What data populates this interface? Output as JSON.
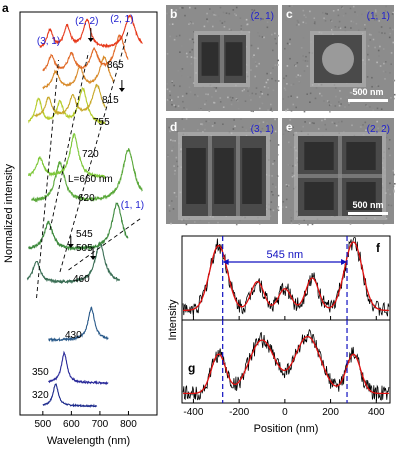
{
  "panel_letters": {
    "a": "a",
    "b": "b",
    "c": "c",
    "d": "d",
    "e": "e",
    "f": "f",
    "g": "g"
  },
  "colors": {
    "blue_label": "#1f1fd0",
    "fit_red": "#e01010",
    "dashed": "#1010c0",
    "image_bg": "#8c8c8c"
  },
  "chart_data": [
    {
      "panel": "a",
      "type": "line",
      "xlabel": "Wavelength (nm)",
      "ylabel": "Normalized intensity",
      "xlim": [
        420,
        900
      ],
      "xticks": [
        500,
        600,
        700,
        800
      ],
      "size_label_prefix": "L=",
      "size_label_unit": " nm",
      "series": [
        {
          "name": "320",
          "L": 320,
          "color": "#1c2a8c",
          "x0": 500,
          "x1": 690,
          "peaks": [
            {
              "x": 545,
              "h": 1.0,
              "w": 11
            }
          ]
        },
        {
          "name": "350",
          "L": 350,
          "color": "#2a2a9a",
          "x0": 520,
          "x1": 730,
          "peaks": [
            {
              "x": 575,
              "h": 1.0,
              "w": 12
            }
          ]
        },
        {
          "name": "430",
          "L": 430,
          "color": "#2a5a8a",
          "x0": 520,
          "x1": 730,
          "peaks": [
            {
              "x": 670,
              "h": 1.0,
              "w": 14
            }
          ]
        },
        {
          "name": "460",
          "L": 460,
          "color": "#3a6e55",
          "x0": 445,
          "x1": 770,
          "peaks": [
            {
              "x": 478,
              "h": 0.55,
              "w": 15
            },
            {
              "x": 700,
              "h": 1.0,
              "w": 20
            }
          ]
        },
        {
          "name": "505",
          "L": 505,
          "color": "#3e8a3e",
          "x0": 450,
          "x1": 800,
          "peaks": [
            {
              "x": 520,
              "h": 0.6,
              "w": 18
            },
            {
              "x": 760,
              "h": 1.0,
              "w": 22
            }
          ]
        },
        {
          "name": "545",
          "L": 545,
          "color": "#5aa83a",
          "x0": 460,
          "x1": 850,
          "peaks": [
            {
              "x": 560,
              "h": 0.75,
              "w": 20
            },
            {
              "x": 800,
              "h": 1.0,
              "w": 25
            }
          ]
        },
        {
          "name": "620",
          "L": 620,
          "color": "#7ec83a",
          "x0": 450,
          "x1": 720,
          "peaks": [
            {
              "x": 490,
              "h": 0.45,
              "w": 15
            },
            {
              "x": 610,
              "h": 1.0,
              "w": 18
            }
          ]
        },
        {
          "name": "660",
          "L": 660,
          "color": "#b6cc2a",
          "x0": 450,
          "x1": 720,
          "peaks": [
            {
              "x": 485,
              "h": 0.7,
              "w": 14
            },
            {
              "x": 560,
              "h": 0.6,
              "w": 14
            },
            {
              "x": 640,
              "h": 1.0,
              "w": 18
            }
          ]
        },
        {
          "name": "720",
          "L": 720,
          "color": "#c8a82a",
          "x0": 470,
          "x1": 720,
          "peaks": [
            {
              "x": 520,
              "h": 0.6,
              "w": 14
            },
            {
              "x": 605,
              "h": 0.65,
              "w": 15
            },
            {
              "x": 690,
              "h": 1.0,
              "w": 20
            }
          ]
        },
        {
          "name": "755",
          "L": 755,
          "color": "#d88a2a",
          "x0": 500,
          "x1": 750,
          "peaks": [
            {
              "x": 545,
              "h": 0.55,
              "w": 15
            },
            {
              "x": 630,
              "h": 0.65,
              "w": 15
            },
            {
              "x": 715,
              "h": 1.0,
              "w": 20
            }
          ]
        },
        {
          "name": "815",
          "L": 815,
          "color": "#e06a28",
          "x0": 500,
          "x1": 800,
          "peaks": [
            {
              "x": 530,
              "h": 0.45,
              "w": 14
            },
            {
              "x": 600,
              "h": 0.5,
              "w": 15
            },
            {
              "x": 680,
              "h": 0.6,
              "w": 16
            },
            {
              "x": 770,
              "h": 1.0,
              "w": 22
            }
          ]
        },
        {
          "name": "865",
          "L": 865,
          "color": "#e63a1c",
          "x0": 490,
          "x1": 850,
          "peaks": [
            {
              "x": 525,
              "h": 0.55,
              "w": 13
            },
            {
              "x": 585,
              "h": 0.65,
              "w": 14
            },
            {
              "x": 655,
              "h": 0.85,
              "w": 16
            },
            {
              "x": 805,
              "h": 1.0,
              "w": 22
            }
          ]
        }
      ],
      "mode_labels": [
        {
          "text": "(3, 1)",
          "x": 555
        },
        {
          "text": "(2, 2)",
          "x": 668
        },
        {
          "text": "(2, 1)",
          "x": 812
        },
        {
          "text": "(1, 1)",
          "x": 842
        }
      ]
    },
    {
      "panel": "f",
      "type": "line",
      "xlabel": "Position (nm)",
      "ylabel": "Intensity",
      "xlim": [
        -450,
        460
      ],
      "xticks": [
        -400,
        -200,
        0,
        200,
        400
      ],
      "annotation": "545 nm",
      "dashed_lines_x": [
        -272,
        272
      ],
      "peaks": [
        {
          "x": -290,
          "h": 0.9,
          "w": 55
        },
        {
          "x": -120,
          "h": 0.4,
          "w": 40
        },
        {
          "x": 0,
          "h": 0.3,
          "w": 40
        },
        {
          "x": 120,
          "h": 0.45,
          "w": 40
        },
        {
          "x": 300,
          "h": 0.95,
          "w": 55
        }
      ],
      "baseline": 0.05
    },
    {
      "panel": "g",
      "type": "line",
      "xlabel": "Position (nm)",
      "ylabel": "Intensity",
      "xlim": [
        -450,
        460
      ],
      "xticks": [
        -400,
        -200,
        0,
        200,
        400
      ],
      "dashed_lines_x": [
        -272,
        272
      ],
      "peaks": [
        {
          "x": -290,
          "h": 0.55,
          "w": 45
        },
        {
          "x": -100,
          "h": 0.75,
          "w": 80
        },
        {
          "x": 100,
          "h": 0.8,
          "w": 80
        },
        {
          "x": 300,
          "h": 0.55,
          "w": 45
        }
      ],
      "baseline": 0.05
    }
  ],
  "images": [
    {
      "id": "b",
      "letter": "b",
      "mode": "(2, 1)",
      "nx": 2,
      "ny": 1,
      "scalebar": ""
    },
    {
      "id": "c",
      "letter": "c",
      "mode": "(1, 1)",
      "nx": 1,
      "ny": 1,
      "scalebar": "500 nm"
    },
    {
      "id": "d",
      "letter": "d",
      "mode": "(3, 1)",
      "nx": 3,
      "ny": 1,
      "scalebar": ""
    },
    {
      "id": "e",
      "letter": "e",
      "mode": "(2, 2)",
      "nx": 2,
      "ny": 2,
      "scalebar": "500 nm"
    }
  ]
}
